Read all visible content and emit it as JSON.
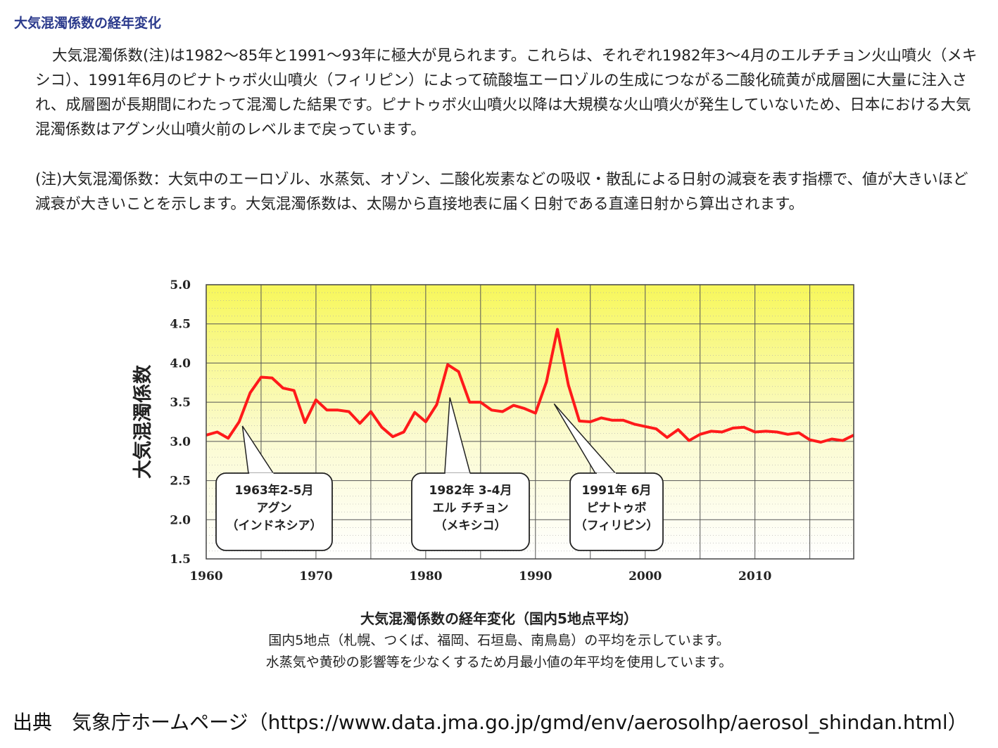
{
  "section_title": "大気混濁係数の経年変化",
  "paragraph1": "大気混濁係数(注)は1982～85年と1991～93年に極大が見られます。これらは、それぞれ1982年3～4月のエルチチョン火山噴火（メキシコ）、1991年6月のピナトゥボ火山噴火（フィリピン）によって硫酸塩エーロゾルの生成につながる二酸化硫黄が成層圏に大量に注入され、成層圏が長期間にわたって混濁した結果です。ピナトゥボ火山噴火以降は大規模な火山噴火が発生していないため、日本における大気混濁係数はアグン火山噴火前のレベルまで戻っています。",
  "paragraph2": "(注)大気混濁係数：大気中のエーロゾル、水蒸気、オゾン、二酸化炭素などの吸収・散乱による日射の減衰を表す指標で、値が大きいほど減衰が大きいことを示します。大気混濁係数は、太陽から直接地表に届く日射である直達日射から算出されます。",
  "caption": {
    "title": "大気混濁係数の経年変化（国内5地点平均）",
    "line1": "国内5地点（札幌、つくば、福岡、石垣島、南鳥島）の平均を示しています。",
    "line2": "水蒸気や黄砂の影響等を少なくするため月最小値の年平均を使用しています。"
  },
  "source": "出典　気象庁ホームページ（https://www.data.jma.go.jp/gmd/env/aerosolhp/aerosol_shindan.html）",
  "chart_data": {
    "type": "line",
    "title": "",
    "xlabel": "",
    "ylabel": "大気混濁係数",
    "xlim": [
      1960,
      2019
    ],
    "ylim": [
      1.5,
      5.0
    ],
    "x_ticks": [
      1960,
      1970,
      1980,
      1990,
      2000,
      2010
    ],
    "y_ticks": [
      "5.0",
      "4.5",
      "4.0",
      "3.5",
      "3.0",
      "2.5",
      "2.0",
      "1.5"
    ],
    "grid": true,
    "background": "yellow-to-white gradient (top to bottom)",
    "line_color": "#ff1a1a",
    "x": [
      1960,
      1961,
      1962,
      1963,
      1964,
      1965,
      1966,
      1967,
      1968,
      1969,
      1970,
      1971,
      1972,
      1973,
      1974,
      1975,
      1976,
      1977,
      1978,
      1979,
      1980,
      1981,
      1982,
      1983,
      1984,
      1985,
      1986,
      1987,
      1988,
      1989,
      1990,
      1991,
      1992,
      1993,
      1994,
      1995,
      1996,
      1997,
      1998,
      1999,
      2000,
      2001,
      2002,
      2003,
      2004,
      2005,
      2006,
      2007,
      2008,
      2009,
      2010,
      2011,
      2012,
      2013,
      2014,
      2015,
      2016,
      2017,
      2018,
      2019
    ],
    "series": [
      {
        "values": [
          3.08,
          3.12,
          3.04,
          3.25,
          3.62,
          3.82,
          3.81,
          3.68,
          3.65,
          3.24,
          3.53,
          3.4,
          3.4,
          3.38,
          3.23,
          3.38,
          3.18,
          3.06,
          3.12,
          3.37,
          3.25,
          3.47,
          3.98,
          3.89,
          3.5,
          3.5,
          3.4,
          3.38,
          3.46,
          3.42,
          3.36,
          3.76,
          4.43,
          3.72,
          3.26,
          3.25,
          3.3,
          3.27,
          3.27,
          3.22,
          3.19,
          3.16,
          3.05,
          3.15,
          3.01,
          3.09,
          3.13,
          3.12,
          3.17,
          3.18,
          3.12,
          3.13,
          3.12,
          3.09,
          3.11,
          3.02,
          2.99,
          3.03,
          3.01,
          3.08
        ]
      }
    ],
    "annotations": [
      {
        "lines": [
          "1963年2-5月",
          "アグン",
          "（インドネシア）"
        ],
        "year": 1963,
        "value": 3.25
      },
      {
        "lines": [
          "1982年 3-4月",
          "エル チチョン",
          "（メキシコ）"
        ],
        "year": 1982,
        "value": 3.55
      },
      {
        "lines": [
          "1991年 6月",
          "ピナトゥボ",
          "（フィリピン）"
        ],
        "year": 1991.5,
        "value": 3.5
      }
    ]
  }
}
